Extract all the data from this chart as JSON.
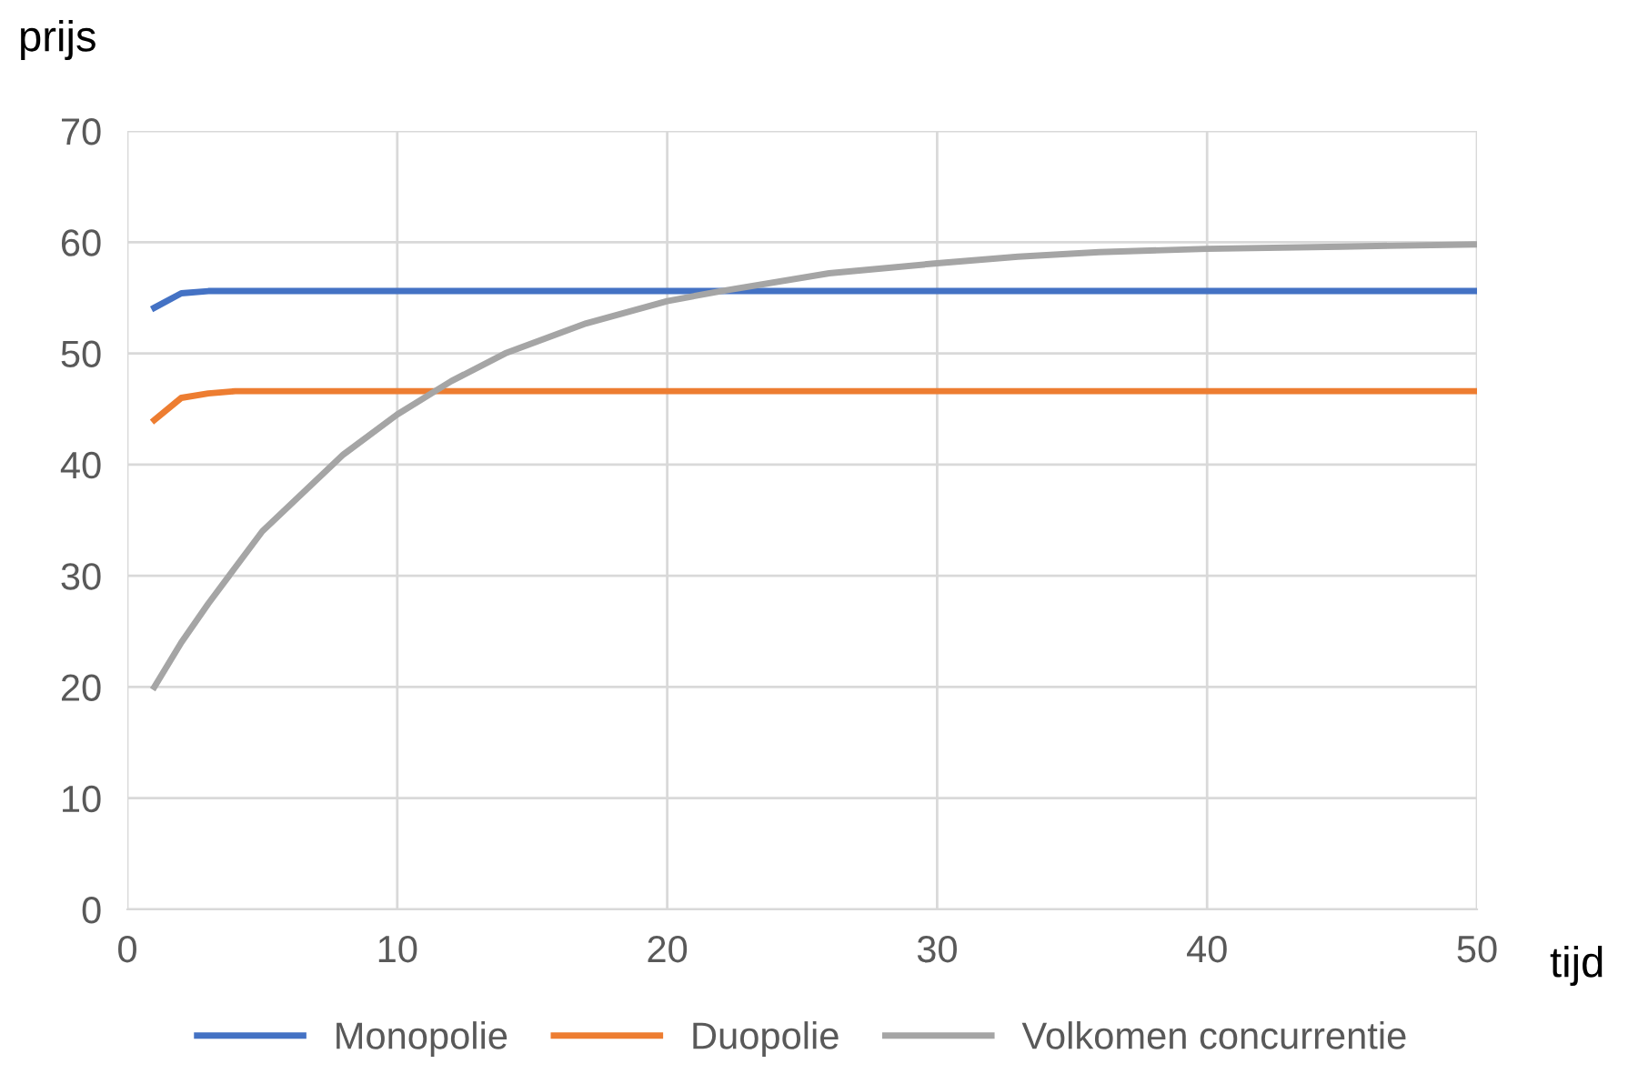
{
  "chart_data": {
    "type": "line",
    "xlabel": "tijd",
    "ylabel": "prijs",
    "xlim": [
      0,
      50
    ],
    "xticks": [
      0,
      10,
      20,
      30,
      40,
      50
    ],
    "ylim": [
      0,
      70
    ],
    "yticks": [
      0,
      10,
      20,
      30,
      40,
      50,
      60,
      70
    ],
    "grid": true,
    "legend": "bottom",
    "marker": "none",
    "line_style": "solid",
    "series": [
      {
        "name": "Monopolie",
        "color": "#4472c4",
        "x": [
          1,
          2,
          3,
          4,
          50
        ],
        "values": [
          54.1,
          55.4,
          55.6,
          55.6,
          55.6
        ]
      },
      {
        "name": "Duopolie",
        "color": "#ed7d31",
        "x": [
          1,
          2,
          3,
          4,
          5,
          50
        ],
        "values": [
          44.0,
          46.0,
          46.4,
          46.6,
          46.6,
          46.6
        ]
      },
      {
        "name": "Volkomen concurrentie",
        "color": "#a5a5a5",
        "x": [
          1,
          2,
          3,
          5,
          8,
          10,
          12,
          14,
          17,
          20,
          22,
          26,
          30,
          33,
          36,
          40,
          45,
          50
        ],
        "values": [
          20.0,
          24.0,
          27.5,
          34.0,
          40.9,
          44.5,
          47.5,
          50.0,
          52.7,
          54.7,
          55.6,
          57.2,
          58.1,
          58.7,
          59.1,
          59.4,
          59.6,
          59.8
        ]
      }
    ]
  }
}
